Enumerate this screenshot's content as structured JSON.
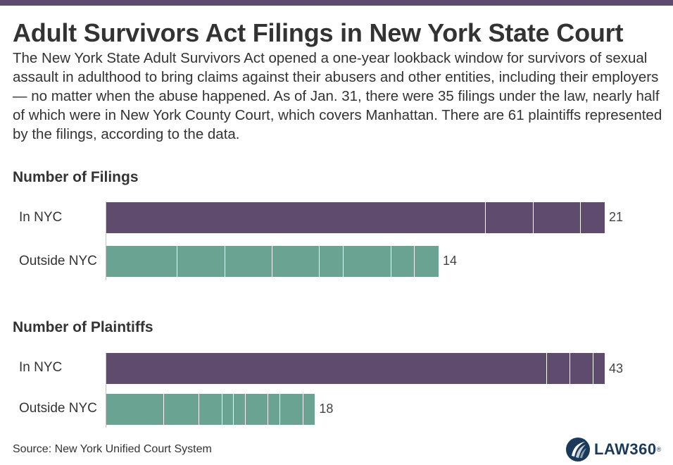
{
  "header": {
    "title": "Adult Survivors Act Filings in New York State Court",
    "description": "The New York State Adult Survivors Act opened a one-year lookback window for survivors of sexual assault in adulthood to bring claims against their abusers and other entities, including their employers — no matter when the abuse happened. As of Jan. 31, there were 35 filings under the law, nearly half of which were in New York County Court, which covers Manhattan. There are 61 plaintiffs represented by the filings, according to the data."
  },
  "colors": {
    "in_nyc": "#5e4b6e",
    "outside_nyc": "#6ba392",
    "top_bar": "#5e4b6e"
  },
  "chart_data": [
    {
      "type": "bar",
      "orientation": "horizontal",
      "title": "Number of Filings",
      "categories": [
        "In NYC",
        "Outside NYC"
      ],
      "values": [
        21,
        14
      ],
      "segments": [
        [
          16,
          2,
          2,
          1
        ],
        [
          3,
          2,
          2,
          2,
          1,
          2,
          1,
          1
        ]
      ],
      "grid": false
    },
    {
      "type": "bar",
      "orientation": "horizontal",
      "title": "Number of Plaintiffs",
      "categories": [
        "In NYC",
        "Outside NYC"
      ],
      "values": [
        43,
        18
      ],
      "segments": [
        [
          38,
          2,
          2,
          1
        ],
        [
          5,
          3,
          2,
          1,
          1,
          2,
          1,
          2,
          1
        ]
      ],
      "grid": false
    }
  ],
  "footer": {
    "source": "Source: New York Unified Court System",
    "logo_text": "LAW360",
    "logo_mark": "®",
    "logo_icon": "law360-swoosh-icon"
  }
}
